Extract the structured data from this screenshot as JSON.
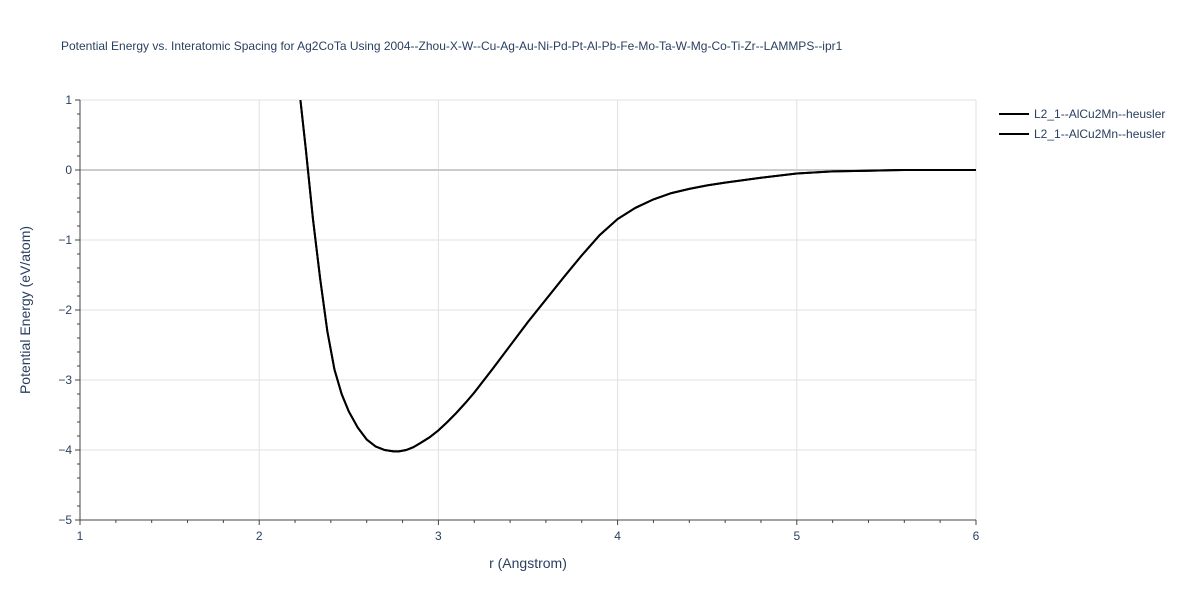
{
  "chart_data": {
    "type": "line",
    "title": "Potential Energy vs. Interatomic Spacing for Ag2CoTa Using 2004--Zhou-X-W--Cu-Ag-Au-Ni-Pd-Pt-Al-Pb-Fe-Mo-Ta-W-Mg-Co-Ti-Zr--LAMMPS--ipr1",
    "xlabel": "r (Angstrom)",
    "ylabel": "Potential Energy (eV/atom)",
    "xlim": [
      1,
      6
    ],
    "ylim": [
      -5,
      1
    ],
    "x_ticks": [
      1,
      2,
      3,
      4,
      5,
      6
    ],
    "x_tick_labels": [
      "1",
      "2",
      "3",
      "4",
      "5",
      "6"
    ],
    "y_ticks": [
      1,
      0,
      -1,
      -2,
      -3,
      -4,
      -5
    ],
    "y_tick_labels": [
      "1",
      "0",
      "−1",
      "−2",
      "−3",
      "−4",
      "−5"
    ],
    "grid": true,
    "legend_position": "top-right",
    "series": [
      {
        "name": "L2_1--AlCu2Mn--heusler",
        "color": "#000000",
        "x": [
          2.23,
          2.26,
          2.3,
          2.34,
          2.38,
          2.42,
          2.46,
          2.5,
          2.55,
          2.6,
          2.65,
          2.7,
          2.75,
          2.78,
          2.82,
          2.86,
          2.9,
          2.95,
          3.0,
          3.05,
          3.1,
          3.15,
          3.2,
          3.3,
          3.4,
          3.5,
          3.6,
          3.7,
          3.8,
          3.9,
          4.0,
          4.1,
          4.2,
          4.3,
          4.4,
          4.5,
          4.6,
          4.8,
          5.0,
          5.2,
          5.4,
          5.6,
          5.8,
          6.0
        ],
        "y": [
          1.0,
          0.3,
          -0.7,
          -1.55,
          -2.3,
          -2.85,
          -3.2,
          -3.45,
          -3.68,
          -3.85,
          -3.95,
          -4.0,
          -4.02,
          -4.02,
          -4.0,
          -3.96,
          -3.9,
          -3.82,
          -3.72,
          -3.6,
          -3.47,
          -3.33,
          -3.18,
          -2.85,
          -2.51,
          -2.17,
          -1.85,
          -1.53,
          -1.22,
          -0.93,
          -0.7,
          -0.54,
          -0.42,
          -0.33,
          -0.27,
          -0.22,
          -0.18,
          -0.11,
          -0.05,
          -0.02,
          -0.01,
          0.0,
          0.0,
          0.0
        ]
      },
      {
        "name": "L2_1--AlCu2Mn--heusler",
        "color": "#000000",
        "x": [
          2.23,
          2.26,
          2.3,
          2.34,
          2.38,
          2.42,
          2.46,
          2.5,
          2.55,
          2.6,
          2.65,
          2.7,
          2.75,
          2.78,
          2.82,
          2.86,
          2.9,
          2.95,
          3.0,
          3.05,
          3.1,
          3.15,
          3.2,
          3.3,
          3.4,
          3.5,
          3.6,
          3.7,
          3.8,
          3.9,
          4.0,
          4.1,
          4.2,
          4.3,
          4.4,
          4.5,
          4.6,
          4.8,
          5.0,
          5.2,
          5.4,
          5.6,
          5.8,
          6.0
        ],
        "y": [
          1.0,
          0.3,
          -0.7,
          -1.55,
          -2.3,
          -2.85,
          -3.2,
          -3.45,
          -3.68,
          -3.85,
          -3.95,
          -4.0,
          -4.02,
          -4.02,
          -4.0,
          -3.96,
          -3.9,
          -3.82,
          -3.72,
          -3.6,
          -3.47,
          -3.33,
          -3.18,
          -2.85,
          -2.51,
          -2.17,
          -1.85,
          -1.53,
          -1.22,
          -0.93,
          -0.7,
          -0.54,
          -0.42,
          -0.33,
          -0.27,
          -0.22,
          -0.18,
          -0.11,
          -0.05,
          -0.02,
          -0.01,
          0.0,
          0.0,
          0.0
        ]
      }
    ]
  }
}
